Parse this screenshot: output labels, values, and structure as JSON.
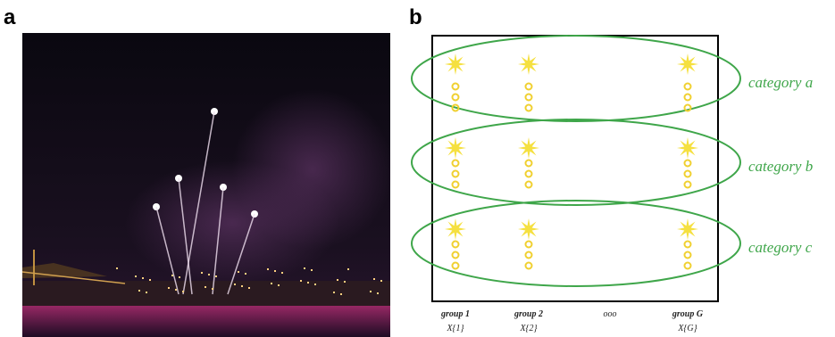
{
  "panel_a": {
    "label": "a"
  },
  "panel_b": {
    "label": "b",
    "categories": [
      "category a",
      "category b",
      "category c"
    ],
    "groups": [
      {
        "name": "group 1",
        "variable": "X{1}"
      },
      {
        "name": "group 2",
        "variable": "X{2}"
      },
      {
        "name": "group G",
        "variable": "X{G}"
      }
    ],
    "ellipsis": "ooo"
  }
}
